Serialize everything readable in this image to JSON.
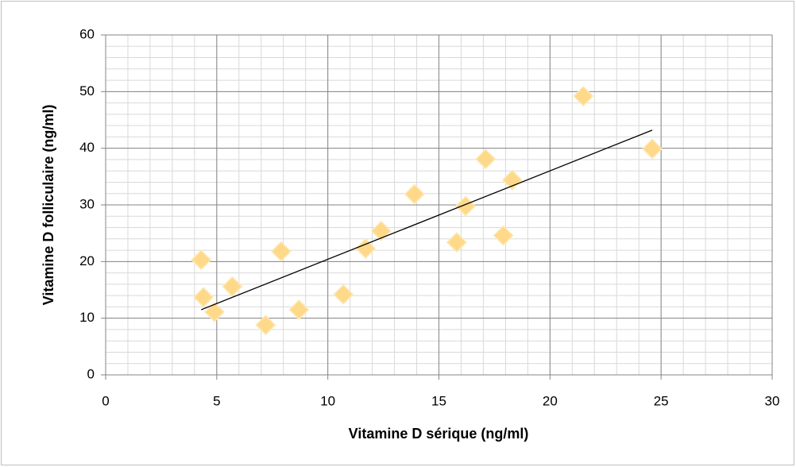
{
  "chart_data": {
    "type": "scatter",
    "x_label": "Vitamine D sérique (ng/ml)",
    "y_label": "Vitamine D folliculaire (ng/ml)",
    "x": [
      4.3,
      4.4,
      4.9,
      5.7,
      7.2,
      7.9,
      8.7,
      10.7,
      11.7,
      12.4,
      13.9,
      15.8,
      16.2,
      17.1,
      17.9,
      18.3,
      21.5,
      24.6
    ],
    "series": [
      {
        "color": "#ffd98a",
        "values": [
          20.3,
          13.7,
          11.1,
          15.6,
          8.8,
          21.8,
          11.5,
          14.2,
          22.3,
          25.4,
          31.9,
          23.4,
          29.8,
          38.1,
          24.6,
          34.4,
          49.2,
          39.9
        ]
      }
    ],
    "trendline": {
      "x": [
        4.3,
        24.6
      ],
      "y": [
        11.5,
        43.2
      ],
      "color": "#000000"
    },
    "xlim": [
      0,
      30
    ],
    "xticks": [
      0,
      5,
      10,
      15,
      20,
      25,
      30
    ],
    "ylim": [
      0,
      60
    ],
    "yticks": [
      0,
      10,
      20,
      30,
      40,
      50,
      60
    ],
    "grid": true,
    "minor_grid": {
      "x": 1,
      "y": 2
    }
  }
}
